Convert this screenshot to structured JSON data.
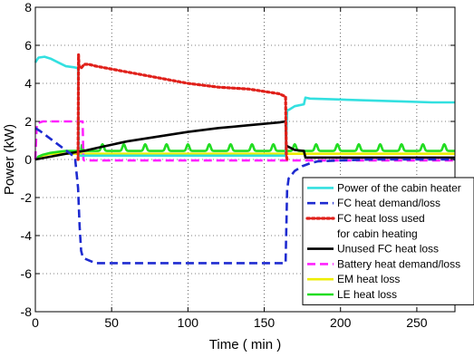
{
  "chart_data": {
    "type": "line",
    "xlabel": "Time ( min )",
    "ylabel": "Power (kW)",
    "xlim": [
      0,
      275
    ],
    "ylim": [
      -8,
      8
    ],
    "xticks": [
      0,
      50,
      100,
      150,
      200,
      250
    ],
    "yticks": [
      -8,
      -6,
      -4,
      -2,
      0,
      2,
      4,
      6,
      8
    ],
    "grid": true,
    "legend_position": "bottom-right",
    "series": [
      {
        "name": "Power of the cabin heater",
        "color": "#33e0e0",
        "dash": "solid",
        "x": [
          0,
          2,
          6,
          10,
          15,
          20,
          25,
          28,
          28.5,
          30,
          35,
          40,
          60,
          80,
          100,
          120,
          140,
          160,
          164,
          165,
          166,
          170,
          176,
          177,
          180,
          200,
          220,
          240,
          260,
          275
        ],
        "y": [
          5.1,
          5.35,
          5.4,
          5.3,
          5.1,
          4.9,
          4.85,
          4.8,
          0.2,
          0.2,
          0.2,
          0.2,
          0.2,
          0.2,
          0.2,
          0.2,
          0.2,
          0.2,
          0.2,
          2.6,
          2.6,
          2.8,
          2.9,
          3.25,
          3.2,
          3.15,
          3.1,
          3.05,
          3.0,
          3.0
        ]
      },
      {
        "name": "FC heat demand/loss",
        "color": "#1e2bd0",
        "dash": "dashed",
        "x": [
          0,
          3,
          8,
          13,
          18,
          23,
          26,
          28,
          29,
          30,
          31,
          32,
          35,
          38,
          40,
          50,
          100,
          150,
          164,
          165,
          166,
          170,
          175,
          180,
          185,
          200,
          220,
          240,
          260,
          275
        ],
        "y": [
          1.65,
          1.5,
          1.2,
          0.9,
          0.6,
          0.3,
          0.1,
          -1.5,
          -3.5,
          -4.8,
          -5.1,
          -5.2,
          -5.3,
          -5.4,
          -5.45,
          -5.45,
          -5.45,
          -5.45,
          -5.45,
          -1.6,
          -1.0,
          -0.6,
          -0.35,
          -0.2,
          -0.1,
          -0.05,
          0.0,
          0.0,
          0.0,
          0.0
        ]
      },
      {
        "name": "FC heat loss used for cabin heating",
        "legend_lines": [
          "FC heat loss used",
          " for cabin heating"
        ],
        "color": "#e0201a",
        "dash": "dotted",
        "x": [
          28,
          28.3,
          28.6,
          30,
          32,
          35,
          40,
          60,
          80,
          100,
          120,
          140,
          160,
          164,
          164.5,
          165
        ],
        "y": [
          0.0,
          5.5,
          4.9,
          4.8,
          5.0,
          5.0,
          4.9,
          4.6,
          4.3,
          4.0,
          3.8,
          3.7,
          3.45,
          3.3,
          0.2,
          0.0
        ]
      },
      {
        "name": "Unused FC heat loss",
        "color": "#000000",
        "dash": "solid",
        "x": [
          0,
          10,
          20,
          28,
          32,
          40,
          60,
          80,
          100,
          120,
          140,
          160,
          164,
          164.5,
          165,
          170,
          176,
          177,
          180,
          200,
          250,
          275
        ],
        "y": [
          0.0,
          0.15,
          0.3,
          0.4,
          0.45,
          0.6,
          0.95,
          1.2,
          1.45,
          1.65,
          1.8,
          1.95,
          2.0,
          0.6,
          0.7,
          0.5,
          0.45,
          0.1,
          0.1,
          0.1,
          0.1,
          0.1
        ]
      },
      {
        "name": "Battery heat demand/loss",
        "color": "#ff22ff",
        "dash": "dashed",
        "x": [
          0,
          0.5,
          1,
          5,
          10,
          15,
          20,
          25,
          30,
          31,
          31.5,
          32,
          40,
          60,
          80,
          100,
          120,
          140,
          160,
          180,
          200,
          220,
          240,
          260,
          275
        ],
        "y": [
          0.0,
          1.0,
          1.9,
          2.0,
          2.0,
          2.0,
          2.0,
          2.0,
          2.0,
          2.0,
          0.0,
          -0.05,
          -0.05,
          -0.05,
          -0.05,
          -0.05,
          -0.05,
          -0.05,
          -0.05,
          -0.05,
          -0.05,
          -0.05,
          -0.05,
          -0.05,
          -0.05
        ]
      },
      {
        "name": "EM heat loss",
        "color": "#eeee00",
        "dash": "solid",
        "x": [
          0,
          5,
          10,
          20,
          30,
          50,
          100,
          150,
          200,
          250,
          275
        ],
        "y": [
          0.05,
          0.2,
          0.3,
          0.3,
          0.3,
          0.3,
          0.3,
          0.3,
          0.3,
          0.3,
          0.3
        ]
      },
      {
        "name": "LE heat loss",
        "color": "#22dd22",
        "dash": "solid",
        "x": [
          0,
          2,
          5,
          10,
          15,
          20,
          25,
          30,
          275
        ],
        "y": [
          0.0,
          0.15,
          0.25,
          0.35,
          0.4,
          0.45,
          0.45,
          0.45,
          0.45
        ],
        "oscillation": {
          "from": 30,
          "to": 275,
          "period": 14,
          "amplitude": 0.35
        }
      }
    ]
  }
}
